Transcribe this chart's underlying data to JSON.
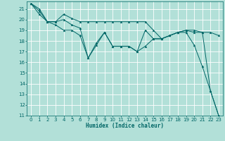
{
  "title": "",
  "xlabel": "Humidex (Indice chaleur)",
  "ylabel": "",
  "bg_color": "#b2e0d8",
  "grid_color": "#ffffff",
  "line_color": "#006666",
  "xlim": [
    -0.5,
    23.5
  ],
  "ylim": [
    11,
    21.7
  ],
  "yticks": [
    11,
    12,
    13,
    14,
    15,
    16,
    17,
    18,
    19,
    20,
    21
  ],
  "xticks": [
    0,
    1,
    2,
    3,
    4,
    5,
    6,
    7,
    8,
    9,
    10,
    11,
    12,
    13,
    14,
    15,
    16,
    17,
    18,
    19,
    20,
    21,
    22,
    23
  ],
  "series": [
    [
      21.5,
      21.0,
      19.8,
      19.8,
      20.5,
      20.1,
      19.8,
      19.8,
      19.8,
      19.8,
      19.8,
      19.8,
      19.8,
      19.8,
      19.8,
      19.0,
      18.2,
      18.5,
      18.8,
      18.8,
      17.6,
      15.6,
      13.3,
      11.0
    ],
    [
      21.5,
      20.8,
      19.8,
      19.5,
      19.0,
      19.0,
      18.5,
      16.4,
      17.6,
      18.8,
      17.5,
      17.5,
      17.5,
      17.0,
      17.5,
      18.2,
      18.2,
      18.5,
      18.8,
      19.0,
      19.0,
      18.8,
      18.8,
      18.5
    ],
    [
      21.5,
      20.5,
      19.8,
      19.8,
      20.0,
      19.5,
      19.2,
      16.4,
      17.8,
      18.8,
      17.5,
      17.5,
      17.5,
      17.0,
      19.0,
      18.2,
      18.2,
      18.5,
      18.8,
      19.0,
      18.8,
      18.8,
      13.3,
      11.0
    ]
  ],
  "tick_fontsize": 5.0,
  "xlabel_fontsize": 5.5,
  "marker_size": 2.0,
  "line_width": 0.7
}
